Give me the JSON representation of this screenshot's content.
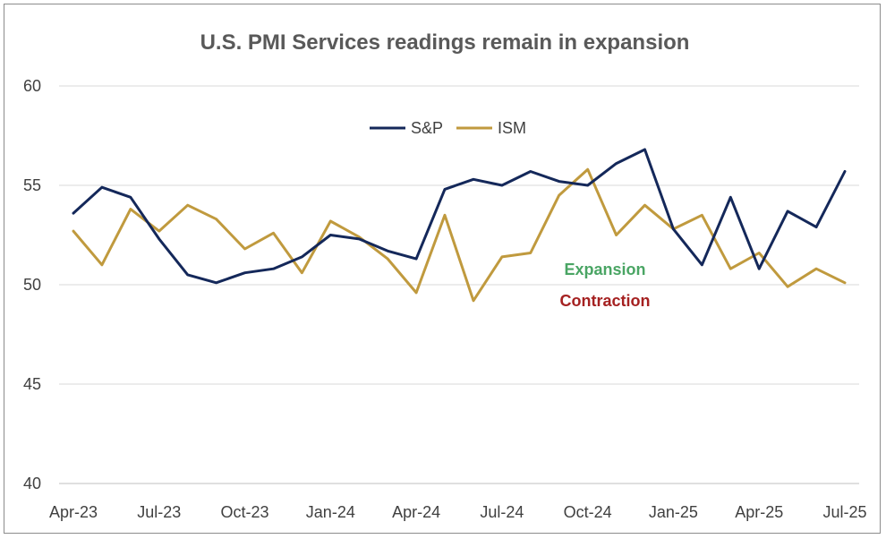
{
  "chart_data": {
    "type": "line",
    "title": "U.S. PMI Services readings remain in expansion",
    "ylim": [
      40,
      60
    ],
    "yticks": [
      "40",
      "45",
      "50",
      "55",
      "60"
    ],
    "grid": "horizontal",
    "legend_position": "top-center",
    "x": [
      "Apr-23",
      "May-23",
      "Jun-23",
      "Jul-23",
      "Aug-23",
      "Sep-23",
      "Oct-23",
      "Nov-23",
      "Dec-23",
      "Jan-24",
      "Feb-24",
      "Mar-24",
      "Apr-24",
      "May-24",
      "Jun-24",
      "Jul-24",
      "Aug-24",
      "Sep-24",
      "Oct-24",
      "Nov-24",
      "Dec-24",
      "Jan-25",
      "Feb-25",
      "Mar-25",
      "Apr-25",
      "May-25",
      "Jun-25",
      "Jul-25"
    ],
    "xtick_labels": [
      "Apr-23",
      "Jul-23",
      "Oct-23",
      "Jan-24",
      "Apr-24",
      "Jul-24",
      "Oct-24",
      "Jan-25",
      "Apr-25",
      "Jul-25"
    ],
    "series": [
      {
        "name": "S&P",
        "color": "#14285a",
        "values": [
          53.6,
          54.9,
          54.4,
          52.3,
          50.5,
          50.1,
          50.6,
          50.8,
          51.4,
          52.5,
          52.3,
          51.7,
          51.3,
          54.8,
          55.3,
          55.0,
          55.7,
          55.2,
          55.0,
          56.1,
          56.8,
          52.8,
          51.0,
          54.4,
          50.8,
          53.7,
          52.9,
          55.7
        ]
      },
      {
        "name": "ISM",
        "color": "#c09a3e",
        "values": [
          52.7,
          51.0,
          53.8,
          52.7,
          54.0,
          53.3,
          51.8,
          52.6,
          50.6,
          53.2,
          52.4,
          51.3,
          49.6,
          53.5,
          49.2,
          51.4,
          51.6,
          54.5,
          55.8,
          52.5,
          54.0,
          52.8,
          53.5,
          50.8,
          51.6,
          49.9,
          50.8,
          50.1
        ]
      }
    ],
    "annotations": [
      {
        "text": "Expansion",
        "color": "#4aa564"
      },
      {
        "text": "Contraction",
        "color": "#a52121"
      }
    ]
  }
}
